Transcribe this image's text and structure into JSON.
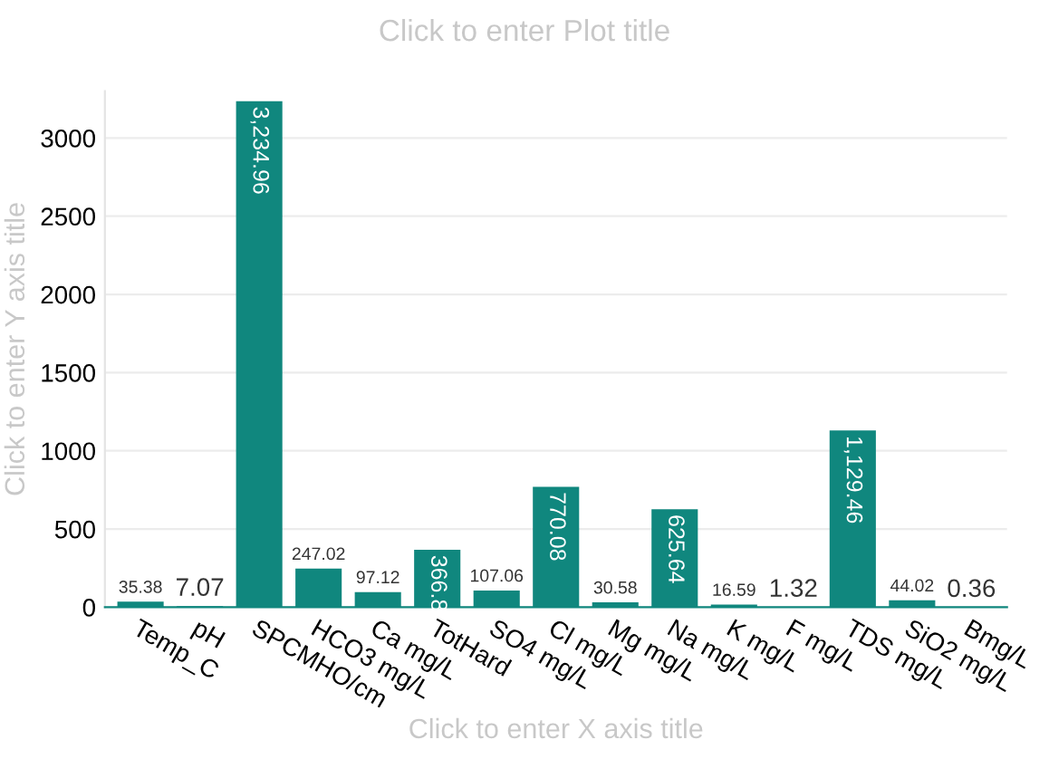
{
  "chart_data": {
    "type": "bar",
    "title": "Click to enter Plot title",
    "xlabel": "Click to enter X axis title",
    "ylabel": "Click to enter Y axis title",
    "categories": [
      "Temp_C",
      "pH",
      "SPCMHO/cm",
      "HCO3 mg/L",
      "Ca mg/L",
      "TotHard",
      "SO4 mg/L",
      "Cl mg/L",
      "Mg mg/L",
      "Na mg/L",
      "K mg/L",
      "F mg/L",
      "TDS mg/L",
      "SiO2 mg/L",
      "Bmg/L"
    ],
    "values": [
      35.38,
      7.07,
      3234.96,
      247.02,
      97.12,
      366.8,
      107.06,
      770.08,
      30.58,
      625.64,
      16.59,
      1.32,
      1129.46,
      44.02,
      0.36
    ],
    "value_labels": [
      "35.38",
      "7.07",
      "3,234.96",
      "247.02",
      "97.12",
      "366.8",
      "107.06",
      "770.08",
      "30.58",
      "625.64",
      "16.59",
      "1.32",
      "1,129.46",
      "44.02",
      "0.36"
    ],
    "color": "#10877e",
    "ylim": [
      0,
      3300
    ],
    "yticks": [
      0,
      500,
      1000,
      1500,
      2000,
      2500,
      3000
    ],
    "grid": "y"
  }
}
